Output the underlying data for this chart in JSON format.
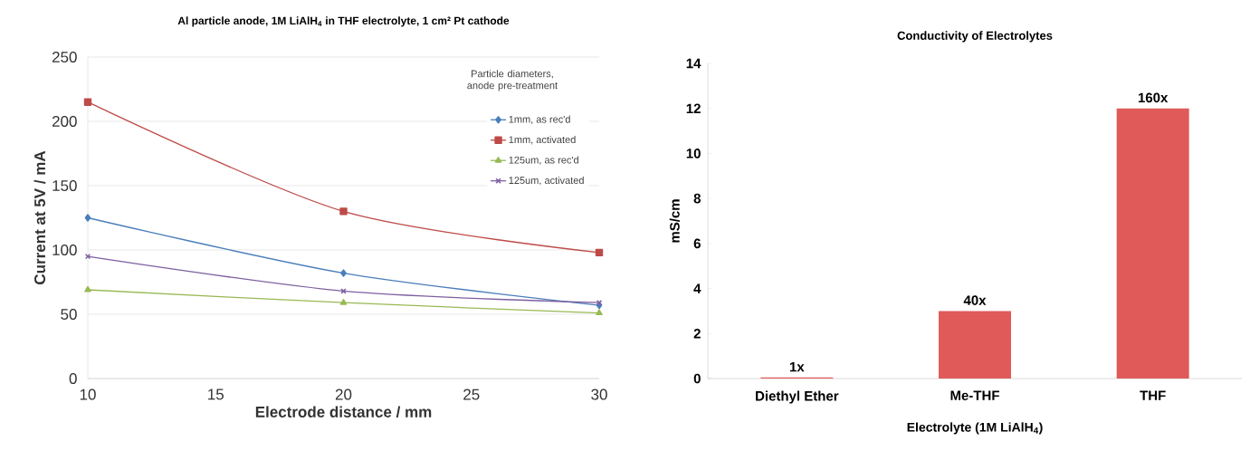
{
  "chart_data": [
    {
      "type": "line",
      "title": "Al particle anode, 1M LiAlH$_{4}$ in THF electrolyte, 1 cm² Pt cathode",
      "xlabel": "Electrode distance / mm",
      "ylabel": "Current at 5V / mA",
      "legend_title": "Particle diameters, anode pre-treatment",
      "x": [
        10,
        20,
        30
      ],
      "xlim": [
        10,
        30
      ],
      "xticks": [
        10,
        15,
        20,
        25,
        30
      ],
      "ylim": [
        0,
        250
      ],
      "yticks": [
        0,
        50,
        100,
        150,
        200,
        250
      ],
      "grid": "y",
      "legend": "top right",
      "line_style": "solid",
      "series": [
        {
          "name": "1mm, as rec'd",
          "color": "#4a7ebb",
          "marker": "diamond",
          "values": [
            125,
            82,
            57
          ]
        },
        {
          "name": "1mm, activated",
          "color": "#be4b48",
          "marker": "square",
          "values": [
            215,
            130,
            98
          ]
        },
        {
          "name": "125um, as rec'd",
          "color": "#98b954",
          "marker": "triangle",
          "values": [
            69,
            59,
            51
          ]
        },
        {
          "name": "125um, activated",
          "color": "#7d60a0",
          "marker": "cross",
          "values": [
            95,
            68,
            59
          ]
        }
      ]
    },
    {
      "type": "bar",
      "title": "Conductivity of Electrolytes",
      "xlabel": "Electrolyte (1M LiAlH$_{4}$)",
      "ylabel": "mS/cm",
      "categories": [
        "Diethyl Ether",
        "Me-THF",
        "THF"
      ],
      "values": [
        0.05,
        3,
        12
      ],
      "color": "#e05a5a",
      "annotations": [
        {
          "text": "1x",
          "x": "Diethyl Ether",
          "y": 0.05
        },
        {
          "text": "40x",
          "x": "Me-THF",
          "y": 3
        },
        {
          "text": "160x",
          "x": "THF",
          "y": 12
        }
      ],
      "ylim": [
        0,
        14
      ],
      "yticks": [
        0,
        2,
        4,
        6,
        8,
        10,
        12,
        14
      ]
    }
  ]
}
